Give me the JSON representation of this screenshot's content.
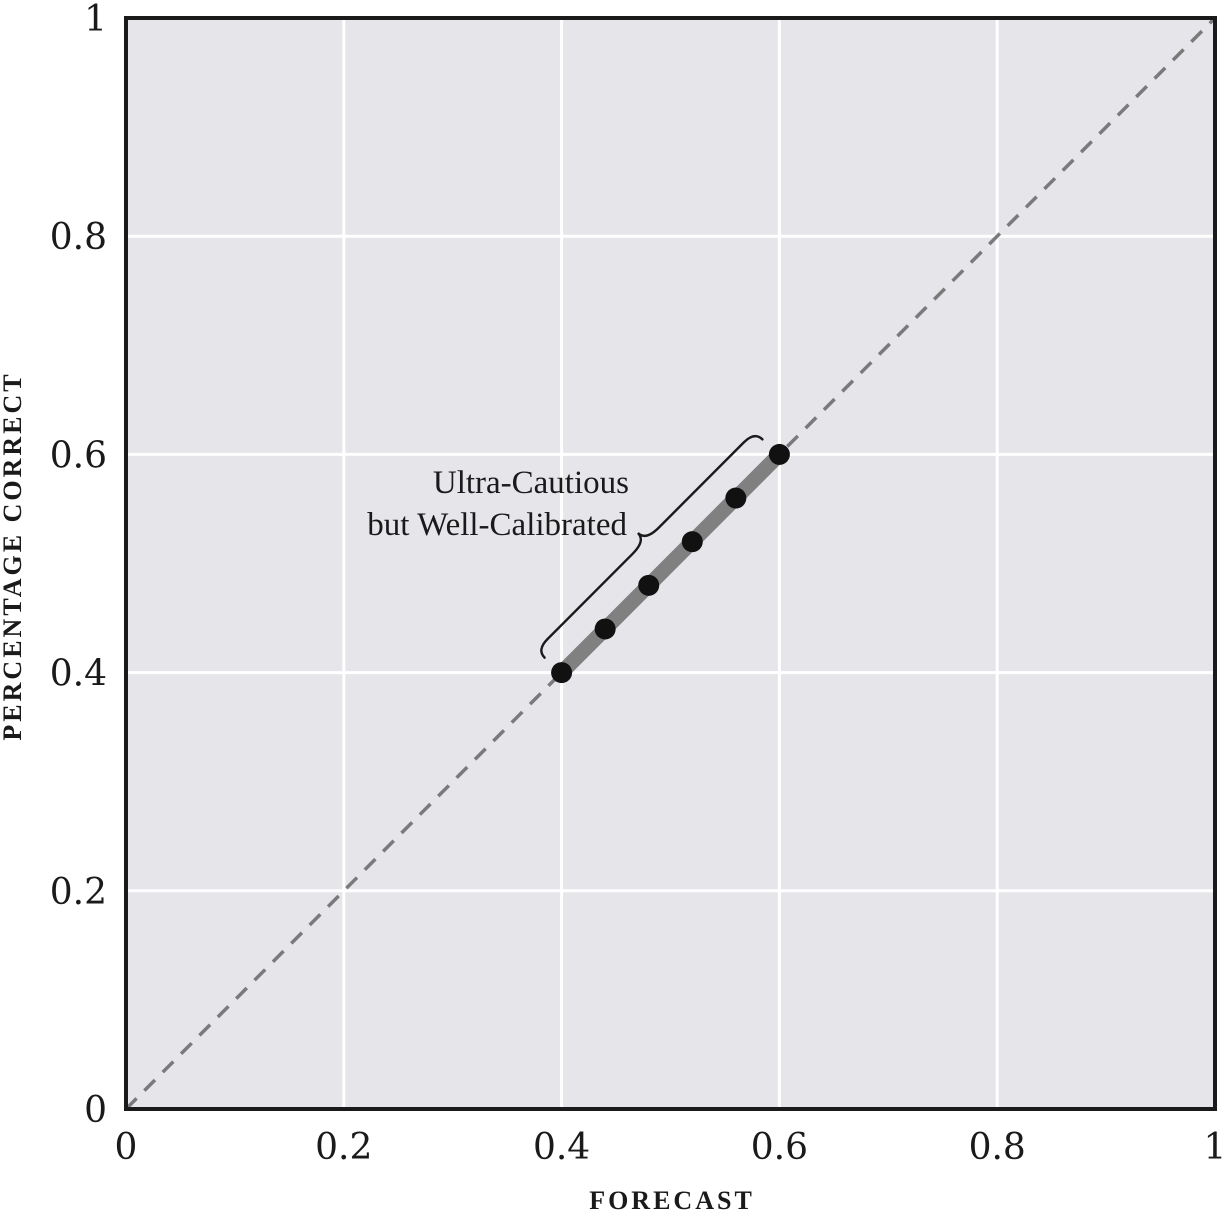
{
  "chart_data": {
    "type": "scatter",
    "xlabel": "FORECAST",
    "ylabel": "PERCENTAGE CORRECT",
    "xlim": [
      0,
      1
    ],
    "ylim": [
      0,
      1
    ],
    "grid": true,
    "x_ticks": [
      {
        "value": 0,
        "label": "0"
      },
      {
        "value": 0.2,
        "label": "0.2"
      },
      {
        "value": 0.4,
        "label": "0.4"
      },
      {
        "value": 0.6,
        "label": "0.6"
      },
      {
        "value": 0.8,
        "label": "0.8"
      },
      {
        "value": 1,
        "label": "1"
      }
    ],
    "y_ticks": [
      {
        "value": 0,
        "label": "0"
      },
      {
        "value": 0.2,
        "label": "0.2"
      },
      {
        "value": 0.4,
        "label": "0.4"
      },
      {
        "value": 0.6,
        "label": "0.6"
      },
      {
        "value": 0.8,
        "label": "0.8"
      },
      {
        "value": 1,
        "label": "1"
      }
    ],
    "reference_line": {
      "style": "dashed",
      "from": [
        0,
        0
      ],
      "to": [
        1,
        1
      ]
    },
    "highlight_segment": {
      "from": [
        0.4,
        0.4
      ],
      "to": [
        0.6,
        0.6
      ]
    },
    "points": [
      {
        "x": 0.4,
        "y": 0.4
      },
      {
        "x": 0.44,
        "y": 0.44
      },
      {
        "x": 0.48,
        "y": 0.48
      },
      {
        "x": 0.52,
        "y": 0.52
      },
      {
        "x": 0.56,
        "y": 0.56
      },
      {
        "x": 0.6,
        "y": 0.6
      }
    ],
    "annotation": {
      "lines": [
        "Ultra-Cautious",
        "but Well-Calibrated"
      ]
    },
    "colors": {
      "plot_background": "#e6e5ea",
      "grid": "#ffffff",
      "frame": "#1a1a1a",
      "reference_line": "#7a7a7a",
      "highlight": "#808080",
      "points": "#111111"
    }
  }
}
